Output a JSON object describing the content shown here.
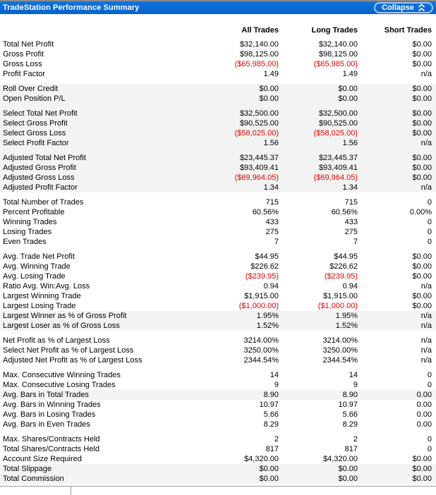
{
  "header": {
    "title": "TradeStation Performance Summary",
    "collapse_label": "Collapse",
    "collapse_icon": "chevron-double-up"
  },
  "columns": [
    "All Trades",
    "Long Trades",
    "Short Trades"
  ],
  "colors": {
    "titlebar_blue": "#0a6ad4",
    "negative_red": "#e60000",
    "shaded_row": "#f3f3f3",
    "header_text": "#ffffff"
  },
  "rows": [
    {
      "label": "Total Net Profit",
      "values": [
        "$32,140.00",
        "$32,140.00",
        "$0.00"
      ],
      "shaded": false
    },
    {
      "label": "Gross Profit",
      "values": [
        "$98,125.00",
        "$98,125.00",
        "$0.00"
      ],
      "shaded": false
    },
    {
      "label": "Gross Loss",
      "values": [
        "($65,985.00)",
        "($65,985.00)",
        "$0.00"
      ],
      "shaded": false
    },
    {
      "label": "Profit Factor",
      "values": [
        "1.49",
        "1.49",
        "n/a"
      ],
      "shaded": false
    },
    {
      "type": "gap",
      "shaded": false
    },
    {
      "label": "Roll Over Credit",
      "values": [
        "$0.00",
        "$0.00",
        "$0.00"
      ],
      "shaded": true
    },
    {
      "label": "Open Position P/L",
      "values": [
        "$0.00",
        "$0.00",
        "$0.00"
      ],
      "shaded": true
    },
    {
      "type": "gap",
      "shaded": true
    },
    {
      "label": "Select Total Net Profit",
      "values": [
        "$32,500.00",
        "$32,500.00",
        "$0.00"
      ],
      "shaded": true
    },
    {
      "label": "Select Gross Profit",
      "values": [
        "$90,525.00",
        "$90,525.00",
        "$0.00"
      ],
      "shaded": true
    },
    {
      "label": "Select Gross Loss",
      "values": [
        "($58,025.00)",
        "($58,025.00)",
        "$0.00"
      ],
      "shaded": true
    },
    {
      "label": "Select Profit Factor",
      "values": [
        "1.56",
        "1.56",
        "n/a"
      ],
      "shaded": true
    },
    {
      "type": "gap",
      "shaded": true
    },
    {
      "label": "Adjusted Total Net Profit",
      "values": [
        "$23,445.37",
        "$23,445.37",
        "$0.00"
      ],
      "shaded": true
    },
    {
      "label": "Adjusted Gross Profit",
      "values": [
        "$93,409.41",
        "$93,409.41",
        "$0.00"
      ],
      "shaded": true
    },
    {
      "label": "Adjusted Gross Loss",
      "values": [
        "($69,964.05)",
        "($69,964.05)",
        "$0.00"
      ],
      "shaded": true
    },
    {
      "label": "Adjusted Profit Factor",
      "values": [
        "1.34",
        "1.34",
        "n/a"
      ],
      "shaded": true
    },
    {
      "type": "gap",
      "shaded": false
    },
    {
      "label": "Total Number of Trades",
      "values": [
        "715",
        "715",
        "0"
      ],
      "shaded": false
    },
    {
      "label": "Percent Profitable",
      "values": [
        "60.56%",
        "60.56%",
        "0.00%"
      ],
      "shaded": false
    },
    {
      "label": "Winning Trades",
      "values": [
        "433",
        "433",
        "0"
      ],
      "shaded": false
    },
    {
      "label": "Losing Trades",
      "values": [
        "275",
        "275",
        "0"
      ],
      "shaded": false
    },
    {
      "label": "Even Trades",
      "values": [
        "7",
        "7",
        "0"
      ],
      "shaded": false
    },
    {
      "type": "gap",
      "shaded": false
    },
    {
      "label": "Avg. Trade Net Profit",
      "values": [
        "$44.95",
        "$44.95",
        "$0.00"
      ],
      "shaded": false
    },
    {
      "label": "Avg. Winning Trade",
      "values": [
        "$226.62",
        "$226.62",
        "$0.00"
      ],
      "shaded": false
    },
    {
      "label": "Avg. Losing Trade",
      "values": [
        "($239.95)",
        "($239.95)",
        "$0.00"
      ],
      "shaded": false
    },
    {
      "label": "Ratio Avg. Win:Avg. Loss",
      "values": [
        "0.94",
        "0.94",
        "n/a"
      ],
      "shaded": false
    },
    {
      "label": "Largest Winning Trade",
      "values": [
        "$1,915.00",
        "$1,915.00",
        "$0.00"
      ],
      "shaded": false
    },
    {
      "label": "Largest Losing Trade",
      "values": [
        "($1,000.00)",
        "($1,000.00)",
        "$0.00"
      ],
      "shaded": false
    },
    {
      "label": "Largest Winner as % of Gross Profit",
      "values": [
        "1.95%",
        "1.95%",
        "n/a"
      ],
      "shaded": true
    },
    {
      "label": "Largest Loser as % of Gross Loss",
      "values": [
        "1.52%",
        "1.52%",
        "n/a"
      ],
      "shaded": true
    },
    {
      "type": "gap",
      "shaded": false
    },
    {
      "label": "Net Profit as % of Largest Loss",
      "values": [
        "3214.00%",
        "3214.00%",
        "n/a"
      ],
      "shaded": false
    },
    {
      "label": "Select Net Profit as % of Largest Loss",
      "values": [
        "3250.00%",
        "3250.00%",
        "n/a"
      ],
      "shaded": false
    },
    {
      "label": "Adjusted Net Profit as % of Largest Loss",
      "values": [
        "2344.54%",
        "2344.54%",
        "n/a"
      ],
      "shaded": false
    },
    {
      "type": "gap",
      "shaded": false
    },
    {
      "label": "Max. Consecutive Winning Trades",
      "values": [
        "14",
        "14",
        "0"
      ],
      "shaded": false
    },
    {
      "label": "Max. Consecutive Losing Trades",
      "values": [
        "9",
        "9",
        "0"
      ],
      "shaded": false
    },
    {
      "label": "Avg. Bars in Total Trades",
      "values": [
        "8.90",
        "8.90",
        "0.00"
      ],
      "shaded": true
    },
    {
      "label": "Avg. Bars in Winning Trades",
      "values": [
        "10.97",
        "10.97",
        "0.00"
      ],
      "shaded": false
    },
    {
      "label": "Avg. Bars in Losing Trades",
      "values": [
        "5.66",
        "5.66",
        "0.00"
      ],
      "shaded": false
    },
    {
      "label": "Avg. Bars in Even Trades",
      "values": [
        "8.29",
        "8.29",
        "0.00"
      ],
      "shaded": false
    },
    {
      "type": "gap",
      "shaded": false
    },
    {
      "label": "Max. Shares/Contracts Held",
      "values": [
        "2",
        "2",
        "0"
      ],
      "shaded": false
    },
    {
      "label": "Total Shares/Contracts Held",
      "values": [
        "817",
        "817",
        "0"
      ],
      "shaded": false
    },
    {
      "label": "Account Size Required",
      "values": [
        "$4,320.00",
        "$4,320.00",
        "$0.00"
      ],
      "shaded": false
    },
    {
      "label": "Total Slippage",
      "values": [
        "$0.00",
        "$0.00",
        "$0.00"
      ],
      "shaded": true
    },
    {
      "label": "Total Commission",
      "values": [
        "$0.00",
        "$0.00",
        "$0.00"
      ],
      "shaded": true
    }
  ]
}
